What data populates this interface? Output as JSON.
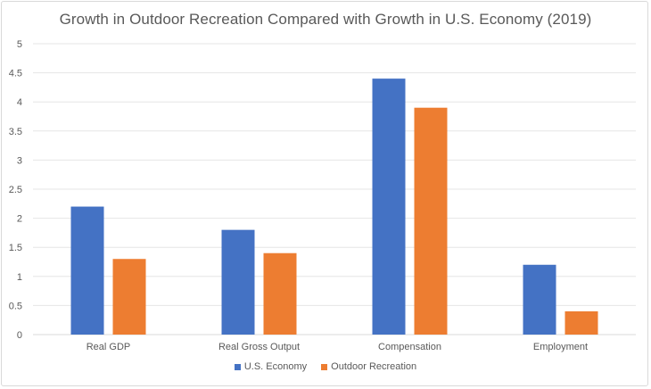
{
  "chart_data": {
    "type": "bar",
    "title": "Growth in Outdoor Recreation Compared with Growth in U.S. Economy (2019)",
    "categories": [
      "Real GDP",
      "Real Gross Output",
      "Compensation",
      "Employment"
    ],
    "series": [
      {
        "name": "U.S. Economy",
        "color": "#4472c4",
        "values": [
          2.2,
          1.8,
          4.4,
          1.2
        ]
      },
      {
        "name": "Outdoor Recreation",
        "color": "#ed7d31",
        "values": [
          1.3,
          1.4,
          3.9,
          0.4
        ]
      }
    ],
    "yticks": [
      "0",
      "0.5",
      "1",
      "1.5",
      "2",
      "2.5",
      "3",
      "3.5",
      "4",
      "4.5",
      "5"
    ],
    "ylim": [
      0,
      5
    ],
    "grid": true,
    "legend_position": "bottom"
  }
}
